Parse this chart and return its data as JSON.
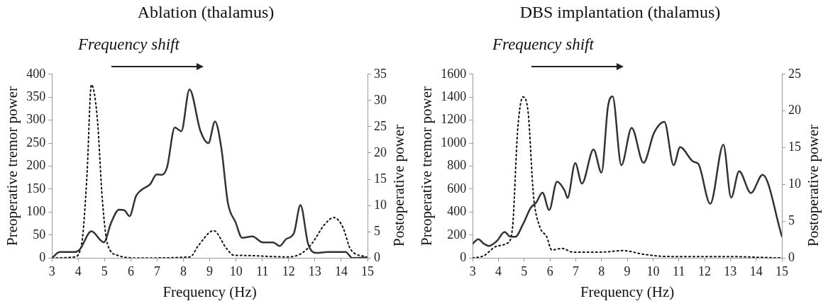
{
  "chart_data": [
    {
      "type": "line",
      "title": "Ablation (thalamus)",
      "annotations": [
        "Frequency shift"
      ],
      "xlabel": "Frequency (Hz)",
      "ylabel": "Preoperative tremor power",
      "y2label": "Postoperative power",
      "xlim": [
        3,
        15
      ],
      "xticks": [
        3,
        4,
        5,
        6,
        7,
        8,
        9,
        10,
        11,
        12,
        13,
        14,
        15
      ],
      "ylim": [
        0,
        400
      ],
      "yticks": [
        0,
        50,
        100,
        150,
        200,
        250,
        300,
        350,
        400
      ],
      "y2lim": [
        0,
        35
      ],
      "y2ticks": [
        0,
        5,
        10,
        15,
        20,
        25,
        30,
        35
      ],
      "grid": false,
      "legend": false,
      "marker": "none",
      "series": [
        {
          "color": "#333333",
          "line_style": "solid",
          "axis": "y",
          "x": [
            3,
            3.3,
            3.85,
            4.05,
            4.5,
            4.97,
            5.26,
            5.55,
            5.75,
            5.95,
            6.2,
            6.4,
            6.74,
            6.98,
            7.18,
            7.38,
            7.67,
            7.92,
            8.23,
            8.65,
            8.95,
            9.2,
            9.44,
            9.69,
            9.98,
            10.23,
            10.62,
            11.02,
            11.41,
            11.66,
            11.9,
            12.2,
            12.45,
            12.74,
            13.04,
            13.48,
            14.17,
            14.42,
            14.96
          ],
          "values": [
            0,
            13,
            13,
            18,
            58,
            34,
            78,
            105,
            104,
            91,
            135,
            148,
            161,
            182,
            181,
            198,
            284,
            276,
            367,
            276,
            250,
            297,
            240,
            120,
            78,
            44,
            47,
            34,
            34,
            26,
            41,
            54,
            115,
            31,
            11,
            13,
            13,
            0,
            1
          ]
        },
        {
          "color": "#111111",
          "line_style": "dotted",
          "axis": "y2",
          "x": [
            3,
            3.85,
            4.13,
            4.33,
            4.5,
            4.72,
            4.92,
            5.11,
            5.5,
            6.3,
            8.26,
            8.56,
            9.15,
            9.64,
            9.93,
            10.03,
            12,
            12.5,
            12.88,
            13.37,
            13.72,
            14.06,
            14.36,
            14.96
          ],
          "values": [
            0,
            0.2,
            2.7,
            15.5,
            33,
            26.9,
            10.9,
            2.7,
            0.5,
            0,
            0.2,
            2.3,
            5.2,
            1.8,
            0.5,
            0.5,
            0.2,
            0.9,
            2.7,
            6.4,
            7.7,
            5.9,
            1.6,
            0.2
          ]
        }
      ]
    },
    {
      "type": "line",
      "title": "DBS implantation (thalamus)",
      "annotations": [
        "Frequency shift"
      ],
      "xlabel": "Frequency (Hz)",
      "ylabel": "Preoperative tremor power",
      "y2label": "Postoperative power",
      "xlim": [
        3,
        15
      ],
      "xticks": [
        3,
        4,
        5,
        6,
        7,
        8,
        9,
        10,
        11,
        12,
        13,
        14,
        15
      ],
      "ylim": [
        0,
        1600
      ],
      "yticks": [
        0,
        200,
        400,
        600,
        800,
        1000,
        1200,
        1400,
        1600
      ],
      "y2lim": [
        0,
        25
      ],
      "y2ticks": [
        0,
        5,
        10,
        15,
        20,
        25
      ],
      "grid": false,
      "legend": false,
      "marker": "none",
      "series": [
        {
          "color": "#333333",
          "line_style": "solid",
          "axis": "y",
          "x": [
            3,
            3.22,
            3.43,
            3.63,
            3.93,
            4.24,
            4.44,
            4.65,
            4.95,
            5.26,
            5.46,
            5.71,
            5.97,
            6.27,
            6.57,
            6.68,
            6.98,
            7.24,
            7.69,
            8.0,
            8.25,
            8.43,
            8.77,
            9.17,
            9.63,
            10.04,
            10.44,
            10.8,
            11.05,
            11.56,
            11.76,
            12.22,
            12.73,
            13.03,
            13.34,
            13.8,
            14.25,
            15
          ],
          "values": [
            125,
            163,
            125,
            105,
            146,
            226,
            188,
            184,
            293,
            439,
            481,
            569,
            418,
            665,
            586,
            523,
            826,
            648,
            945,
            743,
            1318,
            1408,
            808,
            1133,
            829,
            1091,
            1186,
            808,
            965,
            839,
            818,
            472,
            986,
            525,
            755,
            566,
            724,
            189
          ]
        },
        {
          "color": "#111111",
          "line_style": "dotted",
          "axis": "y2",
          "x": [
            3,
            3.43,
            3.93,
            4.34,
            4.54,
            4.75,
            4.95,
            5.15,
            5.36,
            5.61,
            5.87,
            6.07,
            6.48,
            6.88,
            8.0,
            8.84,
            9.63,
            10.64,
            12.67,
            15
          ],
          "values": [
            0,
            0.3,
            1.6,
            2.0,
            3.9,
            17.6,
            21.9,
            19.9,
            8.5,
            4.2,
            2.9,
            1.1,
            1.3,
            0.8,
            0.8,
            1.0,
            0.5,
            0.2,
            0.2,
            0
          ]
        }
      ]
    }
  ]
}
